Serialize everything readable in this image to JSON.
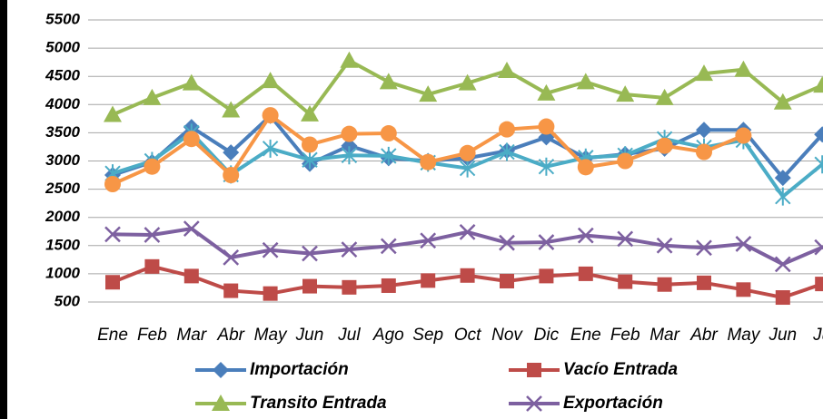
{
  "chart_data": {
    "type": "line",
    "categories": [
      "Ene",
      "Feb",
      "Mar",
      "Abr",
      "May",
      "Jun",
      "Jul",
      "Ago",
      "Sep",
      "Oct",
      "Nov",
      "Dic",
      "Ene",
      "Feb",
      "Mar",
      "Abr",
      "May",
      "Jun",
      "Ju"
    ],
    "series": [
      {
        "name": "Importación",
        "color": "#4a7ebb",
        "marker": "diamond",
        "values": [
          2750,
          2980,
          3600,
          3150,
          3800,
          2950,
          3270,
          3050,
          3000,
          3050,
          3180,
          3420,
          3050,
          3120,
          3220,
          3550,
          3550,
          2700,
          3470
        ]
      },
      {
        "name": "Vacío Entrada",
        "color": "#be4b48",
        "marker": "square",
        "values": [
          850,
          1130,
          960,
          700,
          650,
          780,
          760,
          790,
          880,
          970,
          870,
          960,
          1000,
          860,
          810,
          840,
          720,
          580,
          820
        ]
      },
      {
        "name": "Transito  Entrada",
        "color": "#98b954",
        "marker": "triangle",
        "values": [
          3820,
          4120,
          4380,
          3900,
          4420,
          3830,
          4780,
          4400,
          4180,
          4380,
          4600,
          4200,
          4400,
          4180,
          4120,
          4550,
          4620,
          4040,
          4340
        ]
      },
      {
        "name": "Exportación",
        "color": "#7d60a0",
        "marker": "x",
        "values": [
          1700,
          1690,
          1800,
          1290,
          1420,
          1360,
          1430,
          1490,
          1590,
          1740,
          1550,
          1560,
          1680,
          1620,
          1500,
          1460,
          1530,
          1170,
          1470
        ]
      },
      {
        "color": "#4bacc6",
        "marker": "star",
        "values": [
          2780,
          3000,
          3500,
          2760,
          3220,
          3020,
          3100,
          3090,
          2970,
          2870,
          3160,
          2900,
          3060,
          3100,
          3390,
          3240,
          3370,
          2370,
          2940
        ]
      },
      {
        "color": "#f79646",
        "marker": "circle",
        "values": [
          2590,
          2900,
          3390,
          2750,
          3810,
          3290,
          3480,
          3490,
          2980,
          3140,
          3560,
          3610,
          2890,
          3000,
          3270,
          3160,
          3450,
          null,
          null
        ]
      }
    ],
    "ylim": [
      500,
      5500
    ],
    "yticks": [
      500,
      1000,
      1500,
      2000,
      2500,
      3000,
      3500,
      4000,
      4500,
      5000,
      5500
    ],
    "grid": true
  }
}
